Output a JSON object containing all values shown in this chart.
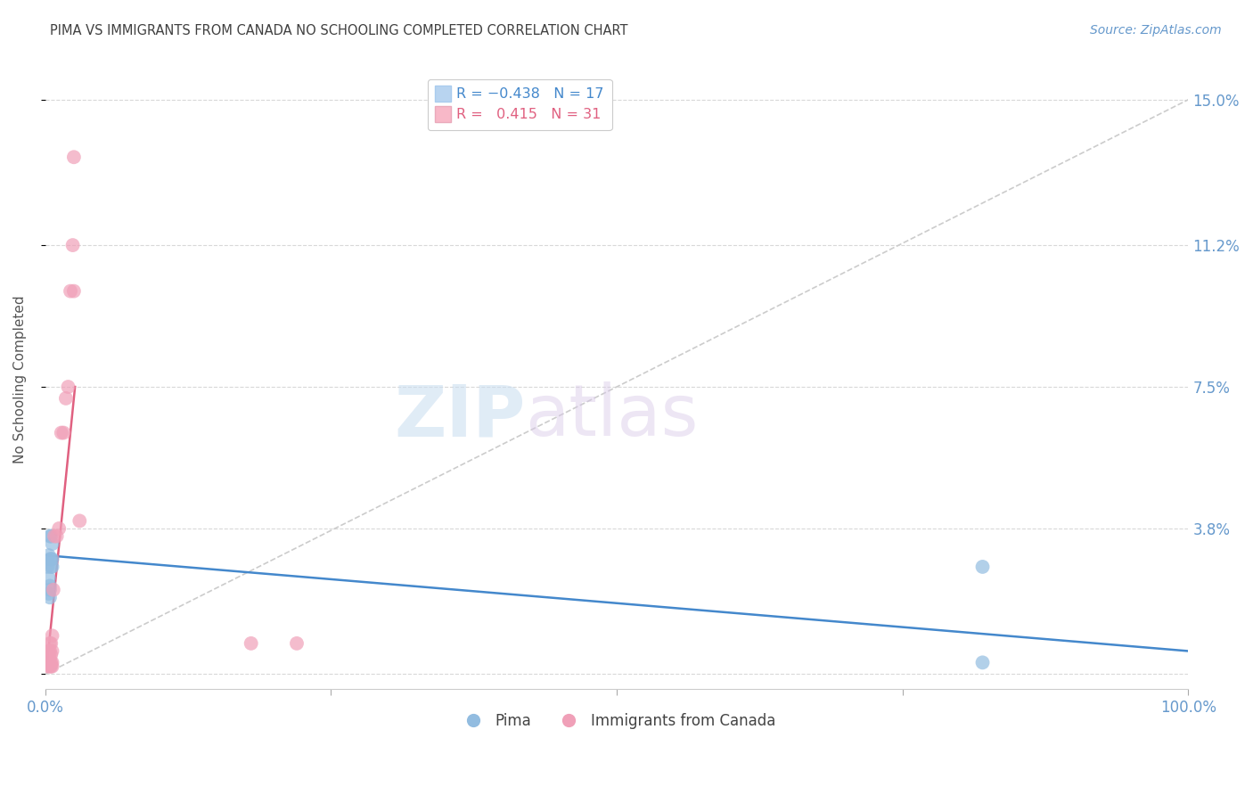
{
  "title": "PIMA VS IMMIGRANTS FROM CANADA NO SCHOOLING COMPLETED CORRELATION CHART",
  "source": "Source: ZipAtlas.com",
  "ylabel": "No Schooling Completed",
  "x_min": 0.0,
  "x_max": 1.0,
  "y_min": -0.004,
  "y_max": 0.158,
  "y_ticks": [
    0.0,
    0.038,
    0.075,
    0.112,
    0.15
  ],
  "y_tick_labels": [
    "",
    "3.8%",
    "7.5%",
    "11.2%",
    "15.0%"
  ],
  "x_ticks": [
    0.0,
    0.25,
    0.5,
    0.75,
    1.0
  ],
  "x_tick_labels": [
    "0.0%",
    "",
    "",
    "",
    "100.0%"
  ],
  "watermark_zip": "ZIP",
  "watermark_atlas": "atlas",
  "pima_color": "#92bce0",
  "canada_color": "#f0a0b8",
  "pima_edge_color": "#6090c0",
  "canada_edge_color": "#e06080",
  "pima_scatter_x": [
    0.002,
    0.003,
    0.004,
    0.005,
    0.005,
    0.006,
    0.006,
    0.003,
    0.004,
    0.004,
    0.003,
    0.004,
    0.004,
    0.005,
    0.006,
    0.82,
    0.82
  ],
  "pima_scatter_y": [
    0.028,
    0.031,
    0.03,
    0.03,
    0.028,
    0.03,
    0.028,
    0.025,
    0.023,
    0.022,
    0.021,
    0.02,
    0.036,
    0.036,
    0.034,
    0.028,
    0.003
  ],
  "canada_scatter_x": [
    0.002,
    0.003,
    0.003,
    0.003,
    0.004,
    0.004,
    0.004,
    0.004,
    0.005,
    0.005,
    0.005,
    0.005,
    0.006,
    0.006,
    0.006,
    0.006,
    0.007,
    0.008,
    0.01,
    0.012,
    0.014,
    0.016,
    0.018,
    0.02,
    0.022,
    0.024,
    0.025,
    0.025,
    0.03,
    0.18,
    0.22
  ],
  "canada_scatter_y": [
    0.002,
    0.003,
    0.004,
    0.006,
    0.002,
    0.004,
    0.006,
    0.008,
    0.002,
    0.003,
    0.005,
    0.008,
    0.002,
    0.003,
    0.006,
    0.01,
    0.022,
    0.036,
    0.036,
    0.038,
    0.063,
    0.063,
    0.072,
    0.075,
    0.1,
    0.112,
    0.1,
    0.135,
    0.04,
    0.008,
    0.008
  ],
  "pima_line_x": [
    0.0,
    1.0
  ],
  "pima_line_y": [
    0.031,
    0.006
  ],
  "canada_line_x": [
    0.002,
    0.026
  ],
  "canada_line_y": [
    0.004,
    0.075
  ],
  "diagonal_line_x": [
    0.0,
    1.0
  ],
  "diagonal_line_y": [
    0.0,
    0.15
  ],
  "background_color": "#ffffff",
  "grid_color": "#d8d8d8",
  "title_color": "#404040",
  "tick_label_color": "#6699cc",
  "pima_line_color": "#4488cc",
  "canada_line_color": "#e06080",
  "legend_box_color_pima": "#b8d4f0",
  "legend_box_color_canada": "#f8b8c8",
  "legend_text_color_pima": "#4488cc",
  "legend_text_color_canada": "#e06080"
}
